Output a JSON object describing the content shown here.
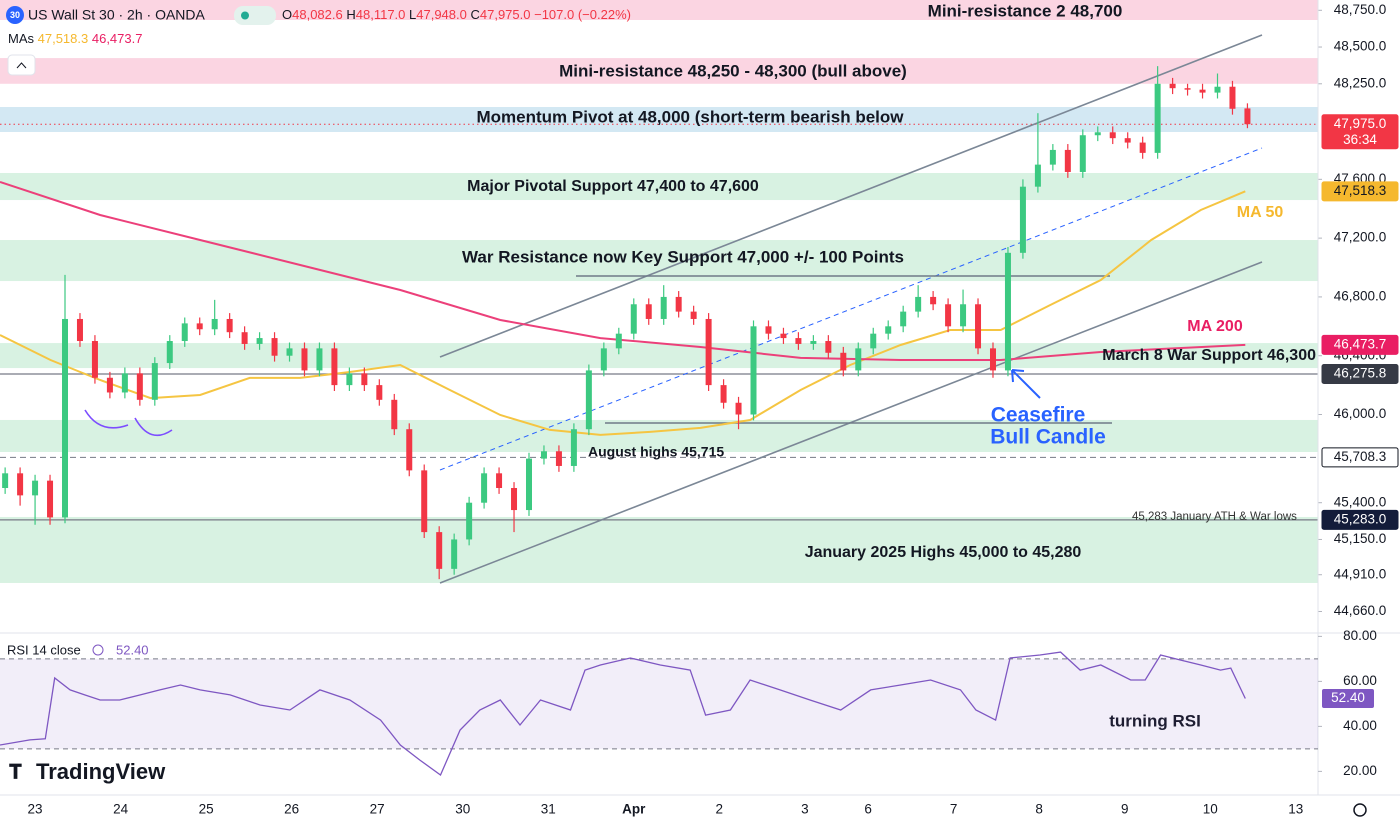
{
  "header": {
    "symbol_badge": "30",
    "title": "US Wall St 30 · 2h · OANDA",
    "ohlc": [
      {
        "key": "O",
        "value": "48,082.6"
      },
      {
        "key": "H",
        "value": "48,117.0"
      },
      {
        "key": "L",
        "value": "47,948.0"
      },
      {
        "key": "C",
        "value": "47,975.0"
      }
    ],
    "change": "−107.0 (−0.22%)",
    "mas_label": "MAs"
  },
  "watermark": "TradingView",
  "chart_data": {
    "type": "candlestick",
    "grid": false,
    "xlim": [
      -0.41,
      15.0
    ],
    "xticks": [
      {
        "value": 0,
        "label": "23"
      },
      {
        "value": 1,
        "label": "24"
      },
      {
        "value": 2,
        "label": "25"
      },
      {
        "value": 3,
        "label": "26"
      },
      {
        "value": 4,
        "label": "27"
      },
      {
        "value": 5,
        "label": "30"
      },
      {
        "value": 6,
        "label": "31"
      },
      {
        "value": 7,
        "label": "Apr"
      },
      {
        "value": 8,
        "label": "2"
      },
      {
        "value": 9,
        "label": "3"
      },
      {
        "value": 9.74,
        "label": "6"
      },
      {
        "value": 10.74,
        "label": "7"
      },
      {
        "value": 11.74,
        "label": "8"
      },
      {
        "value": 12.74,
        "label": "9"
      },
      {
        "value": 13.74,
        "label": "10"
      },
      {
        "value": 14.74,
        "label": "13"
      }
    ],
    "ylim": [
      44500,
      48820
    ],
    "yticks": [
      {
        "value": 48750,
        "label": "48,750.0"
      },
      {
        "value": 48500,
        "label": "48,500.0"
      },
      {
        "value": 48250,
        "label": "48,250.0"
      },
      {
        "value": 47600,
        "label": "47,600.0"
      },
      {
        "value": 47200,
        "label": "47,200.0"
      },
      {
        "value": 46800,
        "label": "46,800.0"
      },
      {
        "value": 46400,
        "label": "46,400.0"
      },
      {
        "value": 46000,
        "label": "46,000.0"
      },
      {
        "value": 45400,
        "label": "45,400.0"
      },
      {
        "value": 45150,
        "label": "45,150.0"
      },
      {
        "value": 44910,
        "label": "44,910.0"
      },
      {
        "value": 44660,
        "label": "44,660.0"
      }
    ],
    "up_color": "#3cc981",
    "down_color": "#f23645",
    "candles": {
      "x": [
        -0.35,
        -0.175,
        0,
        0.175,
        0.35,
        0.525,
        0.7,
        0.875,
        1.05,
        1.225,
        1.4,
        1.575,
        1.75,
        1.925,
        2.1,
        2.275,
        2.45,
        2.625,
        2.8,
        2.975,
        3.15,
        3.325,
        3.5,
        3.675,
        3.85,
        4.025,
        4.2,
        4.375,
        4.55,
        4.725,
        4.9,
        5.075,
        5.25,
        5.425,
        5.6,
        5.775,
        5.95,
        6.125,
        6.3,
        6.475,
        6.65,
        6.825,
        7,
        7.175,
        7.35,
        7.525,
        7.7,
        7.875,
        8.05,
        8.225,
        8.4,
        8.575,
        8.75,
        8.925,
        9.1,
        9.275,
        9.45,
        9.625,
        9.8,
        9.975,
        10.15,
        10.325,
        10.5,
        10.675,
        10.85,
        11.025,
        11.2,
        11.375,
        11.55,
        11.725,
        11.9,
        12.075,
        12.25,
        12.425,
        12.6,
        12.775,
        12.95,
        13.125,
        13.3,
        13.475,
        13.65,
        13.825,
        14,
        14.175
      ],
      "open": [
        45500,
        45600,
        45450,
        45550,
        45300,
        46650,
        46500,
        46250,
        46150,
        46280,
        46100,
        46350,
        46500,
        46620,
        46580,
        46650,
        46560,
        46480,
        46520,
        46400,
        46450,
        46300,
        46450,
        46200,
        46280,
        46200,
        46100,
        45900,
        45620,
        45200,
        44950,
        45150,
        45400,
        45600,
        45500,
        45350,
        45700,
        45750,
        45650,
        45900,
        46300,
        46450,
        46550,
        46750,
        46650,
        46800,
        46700,
        46650,
        46200,
        46080,
        46000,
        46600,
        46550,
        46520,
        46480,
        46500,
        46420,
        46300,
        46450,
        46550,
        46600,
        46700,
        46800,
        46750,
        46600,
        46750,
        46450,
        46300,
        47100,
        47550,
        47700,
        47800,
        47650,
        47900,
        47920,
        47880,
        47850,
        47780,
        48250,
        48220,
        48210,
        48190,
        48230,
        48082.6
      ],
      "high": [
        45640,
        45640,
        45590,
        45590,
        46950,
        46690,
        46540,
        46290,
        46320,
        46320,
        46390,
        46540,
        46660,
        46660,
        46780,
        46690,
        46600,
        46560,
        46560,
        46490,
        46490,
        46490,
        46490,
        46320,
        46320,
        46240,
        46140,
        45940,
        45660,
        45240,
        45190,
        45440,
        45640,
        45640,
        45540,
        45740,
        45790,
        45790,
        45940,
        46340,
        46490,
        46590,
        46790,
        46790,
        46880,
        46840,
        46740,
        46690,
        46240,
        46120,
        46640,
        46640,
        46590,
        46560,
        46540,
        46540,
        46460,
        46490,
        46590,
        46640,
        46740,
        46880,
        46840,
        46790,
        46850,
        46790,
        46490,
        47140,
        47600,
        48050,
        47840,
        47840,
        47940,
        47960,
        47960,
        47920,
        47890,
        48370,
        48290,
        48250,
        48250,
        48320,
        48270,
        48117
      ],
      "low": [
        45460,
        45380,
        45250,
        45250,
        45260,
        46460,
        46210,
        46110,
        46110,
        46060,
        46060,
        46310,
        46460,
        46540,
        46540,
        46520,
        46440,
        46440,
        46360,
        46360,
        46260,
        46260,
        46160,
        46160,
        46160,
        46060,
        45860,
        45580,
        45160,
        44880,
        44910,
        45110,
        45360,
        45460,
        45200,
        45310,
        45660,
        45610,
        45610,
        45860,
        46260,
        46410,
        46510,
        46610,
        46610,
        46660,
        46610,
        46160,
        46040,
        45900,
        45960,
        46510,
        46480,
        46440,
        46440,
        46380,
        46260,
        46260,
        46410,
        46510,
        46560,
        46660,
        46710,
        46560,
        46560,
        46410,
        46250,
        46260,
        47060,
        47510,
        47660,
        47610,
        47610,
        47860,
        47840,
        47810,
        47740,
        47740,
        48180,
        48170,
        48150,
        48150,
        48040,
        47948
      ],
      "close": [
        45600,
        45450,
        45550,
        45300,
        46650,
        46500,
        46250,
        46150,
        46280,
        46100,
        46350,
        46500,
        46620,
        46580,
        46650,
        46560,
        46480,
        46520,
        46400,
        46450,
        46300,
        46450,
        46200,
        46280,
        46200,
        46100,
        45900,
        45620,
        45200,
        44950,
        45150,
        45400,
        45600,
        45500,
        45350,
        45700,
        45750,
        45650,
        45900,
        46300,
        46450,
        46550,
        46750,
        46650,
        46800,
        46700,
        46650,
        46200,
        46080,
        46000,
        46600,
        46550,
        46520,
        46480,
        46500,
        46420,
        46300,
        46450,
        46550,
        46600,
        46700,
        46800,
        46750,
        46600,
        46750,
        46450,
        46300,
        47100,
        47550,
        47700,
        47800,
        47650,
        47900,
        47920,
        47880,
        47850,
        47780,
        48250,
        48220,
        48210,
        48190,
        48230,
        48080,
        47975
      ]
    },
    "ma_lines": [
      {
        "name": "MA 50",
        "color": "#f5c542",
        "x": [
          -0.41,
          0.18,
          0.76,
          1.35,
          1.93,
          2.51,
          3.1,
          3.68,
          4.27,
          4.85,
          5.44,
          6.02,
          6.61,
          7.19,
          7.78,
          8.36,
          8.95,
          9.53,
          10.12,
          10.7,
          11.29,
          11.87,
          12.46,
          13.05,
          13.63,
          14.15
        ],
        "values": [
          46541,
          46371,
          46235,
          46112,
          46133,
          46249,
          46249,
          46289,
          46337,
          46167,
          45997,
          45895,
          45861,
          45882,
          45909,
          45963,
          46167,
          46337,
          46473,
          46575,
          46575,
          46745,
          46915,
          47187,
          47391,
          47518.3
        ]
      },
      {
        "name": "MA 200",
        "color": "#ec407a",
        "x": [
          -0.41,
          0.76,
          1.93,
          3.1,
          4.27,
          5.44,
          6.61,
          7.78,
          8.95,
          10.12,
          11.29,
          12.46,
          14.15
        ],
        "values": [
          47582,
          47357,
          47187,
          47017,
          46847,
          46643,
          46520,
          46459,
          46385,
          46371,
          46371,
          46425,
          46473.7
        ]
      }
    ],
    "zones": [
      {
        "label": "Mini-resistance 2 48,700",
        "from": 48684,
        "to": 48820,
        "color": "#fbd5e2"
      },
      {
        "label": "Mini-resistance 48,250 - 48,300 (bull above)",
        "from": 48250,
        "to": 48425,
        "color": "#fbd5e2"
      },
      {
        "label": "Momentum Pivot at 48,000 (short-term bearish below",
        "from": 47922,
        "to": 48092,
        "color": "#d3e8f3"
      },
      {
        "label": "Major Pivotal Support 47,400 to 47,600",
        "from": 47459,
        "to": 47643,
        "color": "#d8f2e2"
      },
      {
        "label": "War Resistance now Key Support 47,000 +/- 100 Points",
        "from": 46908,
        "to": 47187,
        "color": "#d8f2e2"
      },
      {
        "label": "March 8 War Support 46,300",
        "from": 46316,
        "to": 46486,
        "color": "#d8f2e2"
      },
      {
        "from": 45745,
        "to": 45963,
        "color": "#d8f2e2"
      },
      {
        "label": "January 2025 Highs 45,000 to 45,280",
        "from": 44854,
        "to": 45303,
        "color": "#d8f2e2"
      }
    ],
    "price_labels": [
      {
        "value": 47975.0,
        "label": "47,975.0",
        "sub": "36:34",
        "color": "#f23645",
        "text_color": "#ffffff",
        "line": "dotted"
      },
      {
        "value": 47518.3,
        "label": "47,518.3",
        "color": "#f5b82e",
        "text_color": "#131722"
      },
      {
        "value": 46473.7,
        "label": "46,473.7",
        "color": "#e91e63",
        "text_color": "#ffffff"
      },
      {
        "value": 46275.8,
        "label": "46,275.8",
        "color": "#363a45",
        "text_color": "#ffffff",
        "line": "solid"
      },
      {
        "value": 45708.3,
        "label": "45,708.3",
        "color": "#ffffff",
        "text_color": "#131722",
        "line": "dashed"
      },
      {
        "value": 45283.0,
        "label": "45,283.0",
        "color": "#131c3a",
        "text_color": "#ffffff",
        "line": "solid"
      }
    ],
    "annotations": [
      "August highs 45,715",
      "45,283 January ATH & War lows",
      "Ceasefire",
      "Bull Candle",
      "turning RSI"
    ],
    "rsi": {
      "label": "RSI 14 close",
      "value_label": "52.40",
      "color": "#7e57c2",
      "ylim": [
        9.5,
        81.5
      ],
      "bands": [
        30,
        70
      ],
      "yticks": [
        {
          "value": 20,
          "label": "20.00"
        },
        {
          "value": 40,
          "label": "40.00"
        },
        {
          "value": 60,
          "label": "60.00"
        },
        {
          "value": 80,
          "label": "80.00"
        }
      ],
      "x": [
        -0.41,
        -0.06,
        0.12,
        0.23,
        0.41,
        0.58,
        0.76,
        0.99,
        1.23,
        1.46,
        1.7,
        1.93,
        2.28,
        2.63,
        2.98,
        3.33,
        3.68,
        4.04,
        4.27,
        4.5,
        4.74,
        4.97,
        5.2,
        5.44,
        5.67,
        5.91,
        6.26,
        6.43,
        6.61,
        6.96,
        7.31,
        7.66,
        7.84,
        8.13,
        8.36,
        8.71,
        9.06,
        9.42,
        9.77,
        10.12,
        10.47,
        10.82,
        11,
        11.23,
        11.4,
        11.75,
        11.99,
        12.22,
        12.46,
        12.81,
        12.98,
        13.16,
        13.39,
        13.63,
        13.86,
        13.98,
        14.15
      ],
      "values": [
        31.7,
        34,
        34.5,
        61.5,
        56.2,
        54,
        51.7,
        51.7,
        54,
        56.2,
        58.4,
        56.2,
        54,
        49.5,
        47.3,
        56.2,
        51.7,
        42.8,
        31.7,
        25,
        18.4,
        38.4,
        47.3,
        51.7,
        40.6,
        51.7,
        47.3,
        65,
        67.3,
        70.4,
        67.3,
        65,
        45,
        47.3,
        60.6,
        56.2,
        51.7,
        47.3,
        56.2,
        58.4,
        60.6,
        56.2,
        47.3,
        42.8,
        70.4,
        71.7,
        73,
        65,
        67.3,
        60.6,
        60.6,
        71.7,
        69.5,
        67.3,
        65,
        65.9,
        52.4
      ]
    }
  }
}
